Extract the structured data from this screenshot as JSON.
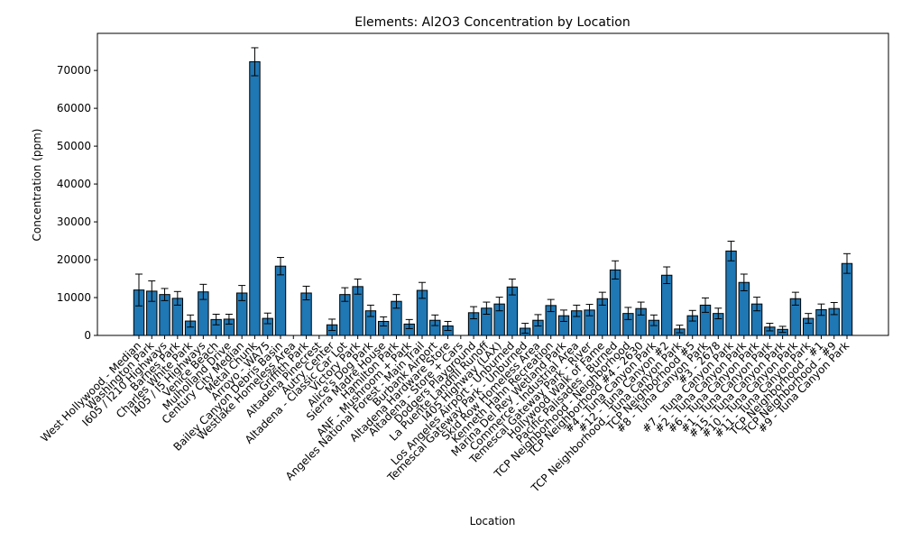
{
  "chart_data": {
    "type": "bar",
    "title": "Elements: Al2O3 Concentration by Location",
    "x_label": "Location",
    "y_label": "Concentration (ppm)",
    "color": "#1f77b4",
    "categories": [
      "West Hollywood - Median",
      "Washington Park",
      "I605 / I210 Highways",
      "Barnes Park",
      "Charles White Park",
      "I405 / I5 Highways",
      "Venice Beach",
      "Mulholland Drive",
      "Century City Median",
      "Metal Chunk",
      "Arroyo - WA75",
      "Bailey Canyon Debris Basin",
      "Westlake Homeless Area",
      "Griffith Park",
      "Altadena Pinecrest",
      "Autry Center",
      "Altadena - Classic Car Lot",
      "Victory Park",
      "Alice's Dog Park",
      "Sierra Madre House",
      "Hamilton Park",
      "ANF - Mushroom + Park",
      "Angeles National Forest - Main Trail",
      "Burbank Airport",
      "Altadena Hardware Store",
      "Altadena - Store + Cars",
      "Dodgers Playground",
      "La Puente Landfill Runoff",
      "I405 Highway (LAX)",
      "Los Angeles Airport - Unburned",
      "Temescal Gateway Park - Unburned",
      "Skid Row Homeless Area",
      "Kenneth Hahn Recreation",
      "Marina Del Rey Wetland Park",
      "Commerce - Industrial Area",
      "Temescal Gateway Park - River",
      "Hollywood Walk of Fame",
      "Pacific Palisades - Burned",
      "TCP Neighborhood - Neighborhood",
      "TCP Neighborhood #4 - 2630",
      "#4 - Tuna Canyon Park",
      "#12 - Tuna Canyon #2",
      "TCP Neighborhood - Tuna Canyon Park",
      "TCP Neighborhood #5",
      "#8 - Tuna Canyon Park",
      "#3 - 2678",
      "#7 - Tuna Canyon Park",
      "#2 - Tuna Canyon Park",
      "#6 - Tuna Canyon Park",
      "#1 - Tuna Canyon Park",
      "#15 - Tuna Canyon Park",
      "#10 - Tuna Canyon Park",
      "#11 - Tuna Canyon Park",
      "TCP Neighborhood - #1",
      "TCP Neighborhood - #9",
      "#9 - Tuna Canyon Park"
    ],
    "values": [
      12000,
      11700,
      10800,
      9800,
      3800,
      11500,
      4200,
      4300,
      11200,
      72300,
      4500,
      18300,
      0,
      11200,
      0,
      2800,
      10800,
      12900,
      6500,
      3700,
      9000,
      3000,
      11900,
      4000,
      2500,
      0,
      6000,
      7200,
      8300,
      12800,
      1900,
      4000,
      7900,
      5200,
      6500,
      6700,
      9700,
      17300,
      5800,
      7100,
      4000,
      15900,
      1700,
      5200,
      8000,
      5800,
      22300,
      14000,
      8300,
      2200,
      1600,
      9700,
      4500,
      6800,
      7100,
      19000
    ],
    "errors": [
      4200,
      2700,
      1600,
      1800,
      1600,
      2000,
      1400,
      1300,
      2000,
      3700,
      1400,
      2300,
      0,
      1800,
      0,
      1500,
      1800,
      2000,
      1500,
      1200,
      1800,
      1200,
      2100,
      1400,
      1200,
      0,
      1600,
      1600,
      1800,
      2100,
      1300,
      1500,
      1600,
      1500,
      1500,
      1500,
      1700,
      2400,
      1600,
      1700,
      1400,
      2200,
      1000,
      1400,
      1900,
      1400,
      2600,
      2200,
      1800,
      1000,
      800,
      1700,
      1300,
      1500,
      1600,
      2600
    ],
    "ylim": [
      0,
      79800
    ],
    "yticks": [
      0,
      10000,
      20000,
      30000,
      40000,
      50000,
      60000,
      70000
    ]
  }
}
